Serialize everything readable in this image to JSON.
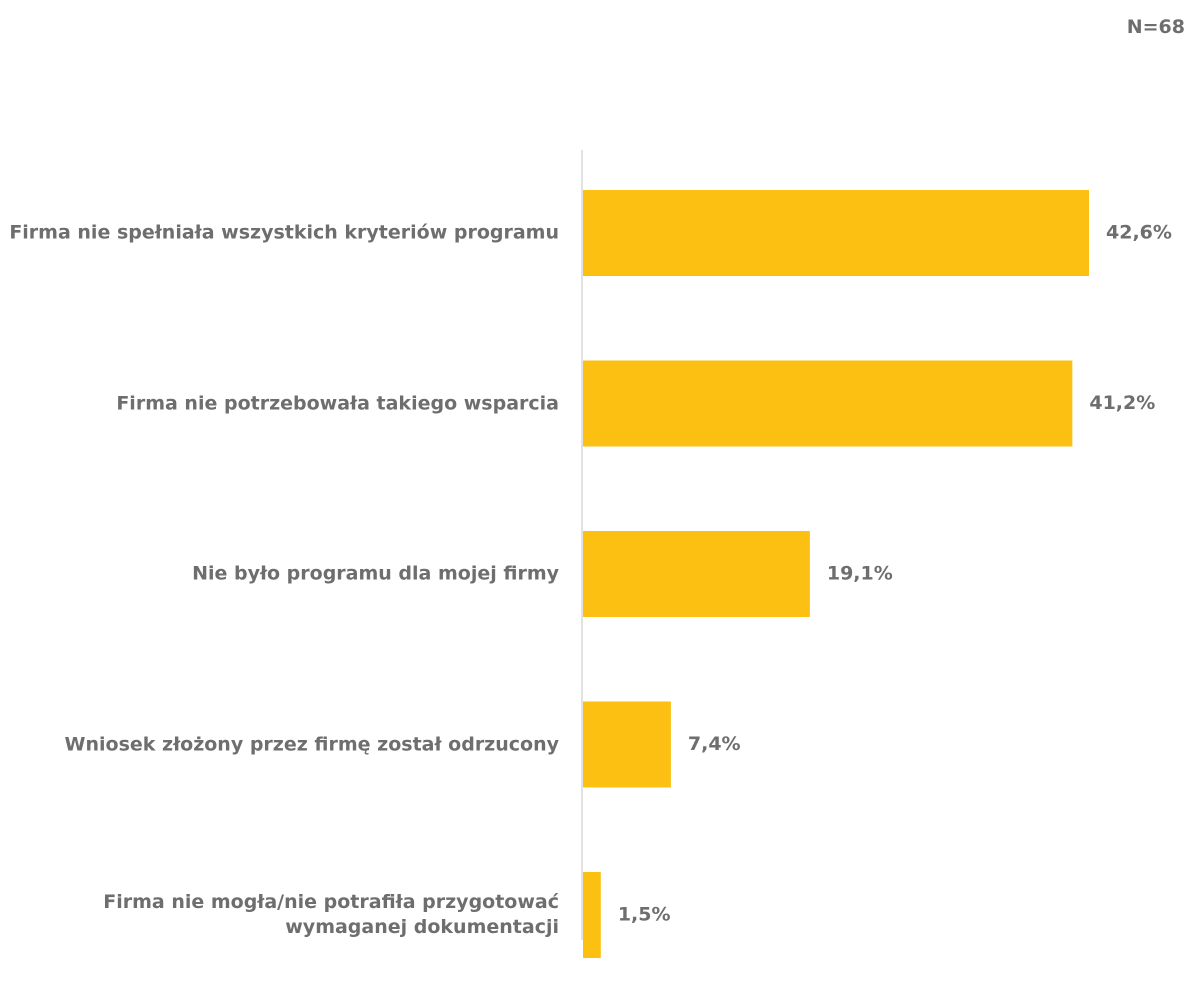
{
  "n_label": "N=68",
  "chart_data": {
    "type": "bar",
    "orientation": "horizontal",
    "categories": [
      "Firma nie spełniała wszystkich kryteriów programu",
      "Firma nie potrzebowała takiego wsparcia",
      "Nie było programu dla mojej firmy",
      "Wniosek złożony przez firmę został odrzucony",
      "Firma nie mogła/nie potrafiła przygotować wymaganej dokumentacji"
    ],
    "values": [
      42.6,
      41.2,
      19.1,
      7.4,
      1.5
    ],
    "value_labels": [
      "42,6%",
      "41,2%",
      "19,1%",
      "7,4%",
      "1,5%"
    ],
    "xlim": [
      0,
      50
    ],
    "bar_color": "#FBC012",
    "axis_color": "#d9d9d9",
    "text_color": "#6e6e6e",
    "grid": false,
    "legend": "none"
  }
}
